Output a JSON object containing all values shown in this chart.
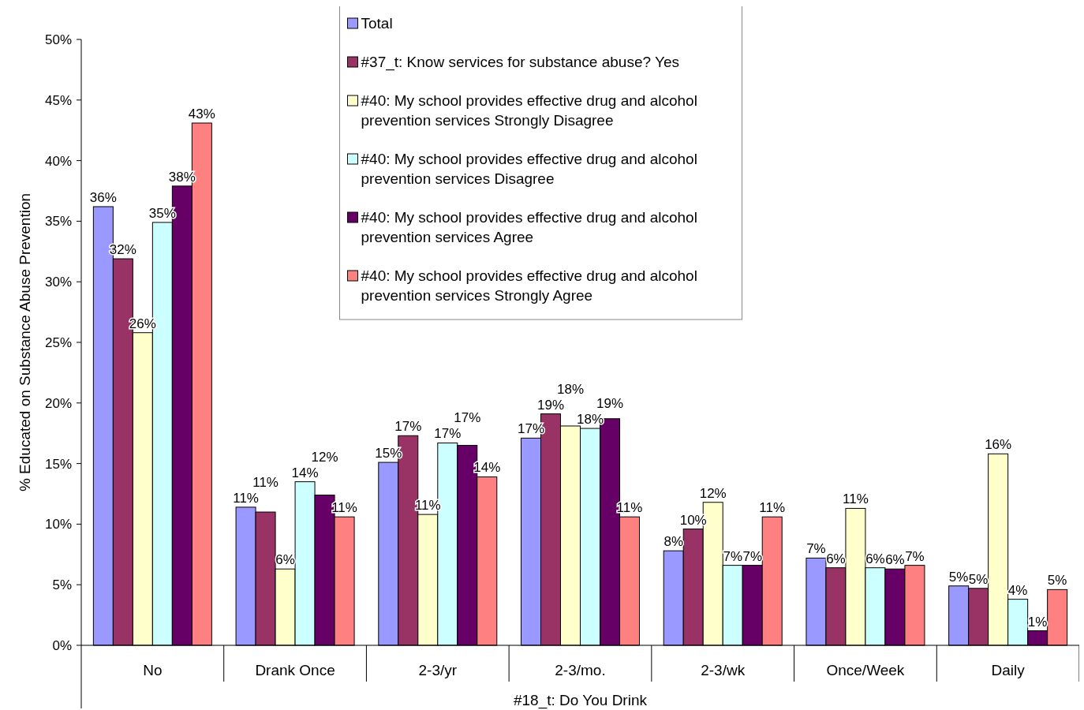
{
  "chart_data": {
    "type": "bar",
    "xlabel": "#18_t: Do You Drink",
    "ylabel": "% Educated on Substance Abuse Prevention",
    "categories": [
      "No",
      "Drank Once",
      "2-3/yr",
      "2-3/mo.",
      "2-3/wk",
      "Once/Week",
      "Daily"
    ],
    "ylim": [
      0,
      50
    ],
    "yticks": [
      {
        "value": 0,
        "label": "0%"
      },
      {
        "value": 5,
        "label": "5%"
      },
      {
        "value": 10,
        "label": "10%"
      },
      {
        "value": 15,
        "label": "15%"
      },
      {
        "value": 20,
        "label": "20%"
      },
      {
        "value": 25,
        "label": "25%"
      },
      {
        "value": 30,
        "label": "30%"
      },
      {
        "value": 35,
        "label": "35%"
      },
      {
        "value": 40,
        "label": "40%"
      },
      {
        "value": 45,
        "label": "45%"
      },
      {
        "value": 50,
        "label": "50%"
      }
    ],
    "grid": false,
    "legend": "top",
    "series": [
      {
        "name": "Total",
        "color": "#9999ff",
        "values": [
          36.2,
          11.4,
          15.1,
          17.1,
          7.8,
          7.2,
          4.9
        ],
        "value_labels": [
          "36%",
          "11%",
          "15%",
          "17%",
          "8%",
          "7%",
          "5%"
        ]
      },
      {
        "name": "#37_t: Know services for substance abuse? Yes",
        "color": "#993366",
        "values": [
          31.9,
          11.0,
          17.3,
          19.1,
          9.6,
          6.4,
          4.7
        ],
        "value_labels": [
          "32%",
          "11%",
          "17%",
          "19%",
          "10%",
          "6%",
          "5%"
        ]
      },
      {
        "name": "#40: My school provides effective drug and alcohol prevention services Strongly Disagree",
        "color": "#ffffcc",
        "values": [
          25.8,
          6.3,
          10.8,
          18.1,
          11.8,
          11.3,
          15.8
        ],
        "value_labels": [
          "26%",
          "6%",
          "11%",
          "18%",
          "12%",
          "11%",
          "16%"
        ]
      },
      {
        "name": "#40: My school provides effective drug and alcohol prevention services Disagree",
        "color": "#ccffff",
        "values": [
          34.9,
          13.5,
          16.7,
          17.9,
          6.6,
          6.4,
          3.8
        ],
        "value_labels": [
          "35%",
          "14%",
          "17%",
          "18%",
          "7%",
          "6%",
          "4%"
        ]
      },
      {
        "name": "#40: My school provides effective drug and alcohol prevention services Agree",
        "color": "#660066",
        "values": [
          37.9,
          12.4,
          16.5,
          18.7,
          6.6,
          6.3,
          1.2
        ],
        "value_labels": [
          "38%",
          "12%",
          "17%",
          "19%",
          "7%",
          "6%",
          "1%"
        ]
      },
      {
        "name": "#40: My school provides effective drug and alcohol prevention services Strongly Agree",
        "color": "#ff8080",
        "values": [
          43.1,
          10.6,
          13.9,
          10.6,
          10.6,
          6.6,
          4.6
        ],
        "value_labels": [
          "43%",
          "11%",
          "14%",
          "11%",
          "11%",
          "7%",
          "5%"
        ]
      }
    ]
  }
}
